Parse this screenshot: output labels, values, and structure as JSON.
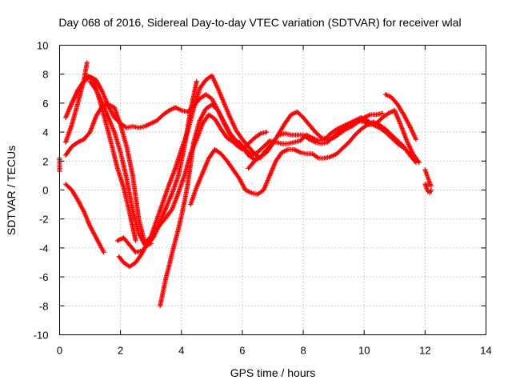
{
  "chart_data": {
    "type": "scatter",
    "title": "Day 068 of 2016, Sidereal Day-to-day VTEC variation (SDTVAR) for receiver wlal",
    "xlabel": "GPS time / hours",
    "ylabel": "SDTVAR / TECUs",
    "xlim": [
      0,
      14
    ],
    "ylim": [
      -10,
      10
    ],
    "xticks": [
      0,
      2,
      4,
      6,
      8,
      10,
      12,
      14
    ],
    "yticks": [
      -10,
      -8,
      -6,
      -4,
      -2,
      0,
      2,
      4,
      6,
      8,
      10
    ],
    "grid": true,
    "legend": "none",
    "marker": "+",
    "color": "#ff0000",
    "series": [
      {
        "x": [
          0.2,
          0.4,
          0.6,
          0.8,
          1.0,
          1.2,
          1.45
        ],
        "y": [
          0.4,
          0.0,
          -0.7,
          -1.5,
          -2.5,
          -3.3,
          -4.3
        ]
      },
      {
        "x": [
          0.2,
          0.4,
          0.6,
          0.8,
          1.0,
          1.2,
          1.4,
          1.6,
          1.8,
          2.0,
          2.2,
          2.4,
          2.6,
          2.8,
          3.0,
          3.2,
          3.4,
          3.6,
          3.8,
          4.0,
          4.2,
          4.4,
          4.6,
          4.8,
          5.0,
          5.2,
          5.4,
          5.6,
          5.8,
          6.0,
          6.2,
          6.4,
          6.6,
          6.8
        ],
        "y": [
          5.0,
          6.0,
          6.9,
          7.5,
          7.8,
          7.6,
          6.8,
          5.8,
          5.0,
          4.6,
          4.3,
          4.4,
          4.3,
          4.4,
          4.6,
          4.8,
          5.2,
          5.5,
          5.7,
          5.5,
          5.4,
          5.8,
          6.3,
          6.6,
          6.3,
          5.5,
          4.6,
          3.8,
          3.1,
          2.8,
          3.2,
          3.6,
          3.9,
          4.0
        ]
      },
      {
        "x": [
          0.3,
          0.5,
          0.7,
          0.9,
          1.1,
          1.3,
          1.5,
          1.7,
          1.9,
          2.1,
          2.3,
          2.5
        ],
        "y": [
          5.5,
          6.4,
          7.2,
          7.9,
          7.7,
          6.3,
          4.8,
          3.2,
          1.5,
          0.2,
          -1.6,
          -3.5
        ]
      },
      {
        "x": [
          0.2,
          0.4,
          0.6,
          0.8,
          0.9
        ],
        "y": [
          3.3,
          4.5,
          6.0,
          7.6,
          8.8
        ]
      },
      {
        "x": [
          0.2,
          0.4,
          0.6,
          0.8,
          1.0,
          1.2,
          1.4,
          1.6,
          1.8,
          2.0,
          2.2,
          2.4,
          2.6,
          2.8,
          3.0,
          3.2,
          3.4,
          3.6,
          3.8,
          4.0,
          4.2,
          4.4,
          4.6,
          4.8,
          5.0,
          5.2,
          5.4,
          5.6,
          5.8,
          6.0,
          6.2,
          6.4,
          6.6
        ],
        "y": [
          2.4,
          3.0,
          3.3,
          3.5,
          4.0,
          5.1,
          5.8,
          5.9,
          5.7,
          4.5,
          3.0,
          1.0,
          -2.0,
          -3.7,
          -3.2,
          -2.0,
          -0.8,
          0.4,
          1.5,
          2.8,
          4.0,
          5.6,
          7.0,
          7.6,
          7.9,
          7.0,
          6.0,
          5.0,
          4.1,
          3.5,
          3.0,
          2.5,
          2.2
        ]
      },
      {
        "x": [
          1.9,
          2.1,
          2.3,
          2.5,
          2.7,
          2.9,
          3.1,
          3.3,
          3.5,
          3.7,
          3.9,
          4.1,
          4.3,
          4.5
        ],
        "y": [
          -3.5,
          -3.3,
          -3.8,
          -4.3,
          -4.2,
          -3.8,
          -3.2,
          -2.2,
          -1.2,
          -0.2,
          1.0,
          3.0,
          5.5,
          7.5
        ]
      },
      {
        "x": [
          1.95,
          2.1,
          2.3,
          2.5,
          2.7,
          2.9,
          3.1,
          3.3,
          3.5,
          3.7,
          3.9,
          4.1,
          4.3,
          4.5,
          4.7,
          4.9,
          5.1,
          5.3,
          5.5,
          5.7,
          5.9,
          6.1,
          6.3,
          6.5,
          6.7,
          6.9,
          7.1,
          7.3,
          7.5,
          7.7,
          7.9,
          8.1,
          8.3,
          8.5,
          8.7,
          8.9,
          9.1,
          9.3,
          9.5,
          9.7,
          9.9,
          10.1,
          10.3,
          10.5,
          10.7,
          10.9,
          11.1,
          11.3,
          11.5,
          11.7
        ],
        "y": [
          -4.6,
          -5.0,
          -5.3,
          -5.0,
          -4.4,
          -3.6,
          -3.0,
          -2.4,
          -1.9,
          -1.3,
          -0.2,
          1.0,
          2.5,
          3.5,
          4.6,
          5.2,
          4.9,
          4.2,
          3.6,
          3.3,
          3.3,
          2.8,
          2.4,
          2.6,
          3.0,
          3.4,
          3.3,
          3.2,
          3.2,
          3.3,
          3.4,
          3.8,
          3.6,
          3.4,
          3.5,
          3.9,
          4.2,
          4.4,
          4.6,
          4.8,
          5.0,
          4.8,
          4.5,
          4.3,
          4.0,
          3.6,
          3.2,
          2.9,
          2.5,
          2.2
        ]
      },
      {
        "x": [
          3.3,
          3.4,
          3.5,
          3.6,
          3.7,
          3.8,
          3.9,
          4.0,
          4.1,
          4.2,
          4.3,
          4.4,
          4.6,
          4.8,
          5.0,
          5.2,
          5.4,
          5.6,
          5.8,
          6.0,
          6.2,
          6.4,
          6.6,
          6.8,
          7.0,
          7.2,
          7.4,
          7.6,
          7.8,
          8.0,
          8.2,
          8.4,
          8.6,
          8.8,
          9.0,
          9.2,
          9.4,
          9.6,
          9.8,
          10.0,
          10.2,
          10.4,
          10.6,
          10.8,
          11.0,
          11.2,
          11.4,
          11.6,
          11.8
        ],
        "y": [
          -8.0,
          -7.0,
          -6.0,
          -5.2,
          -4.3,
          -3.5,
          -2.7,
          -1.8,
          -0.8,
          0.3,
          1.8,
          3.3,
          4.8,
          5.6,
          5.9,
          5.5,
          4.7,
          3.9,
          3.4,
          3.0,
          2.4,
          2.1,
          2.3,
          2.8,
          3.3,
          3.8,
          3.9,
          3.8,
          3.8,
          3.8,
          3.5,
          3.3,
          3.2,
          3.3,
          3.7,
          4.1,
          4.3,
          4.5,
          4.8,
          4.7,
          4.5,
          4.6,
          5.0,
          5.3,
          5.5,
          4.5,
          3.4,
          2.5,
          1.9
        ]
      },
      {
        "x": [
          4.3,
          4.5,
          4.7,
          4.9,
          5.1,
          5.3,
          5.5,
          5.7,
          5.9,
          6.1,
          6.3,
          6.5,
          6.7,
          6.9,
          7.1,
          7.3,
          7.5,
          7.7,
          7.9,
          8.1,
          8.3,
          8.5,
          8.7,
          8.9,
          9.1,
          9.3,
          9.5,
          9.7,
          9.9,
          10.1,
          10.3,
          10.5,
          10.7,
          10.9,
          11.1,
          11.3,
          11.5,
          11.7
        ],
        "y": [
          -1.0,
          0.2,
          1.2,
          2.2,
          2.8,
          2.5,
          2.0,
          1.4,
          0.8,
          0.0,
          -0.2,
          -0.3,
          0.0,
          1.0,
          2.0,
          2.6,
          2.8,
          2.8,
          2.6,
          2.5,
          2.5,
          2.2,
          2.2,
          2.3,
          2.5,
          2.9,
          3.3,
          3.8,
          4.2,
          4.5,
          4.7,
          4.5,
          4.2,
          3.8,
          3.4,
          3.0,
          2.4,
          1.9
        ]
      },
      {
        "x": [
          6.2,
          6.4,
          6.6,
          6.8,
          7.0,
          7.2,
          7.4,
          7.6,
          7.8,
          8.0,
          8.2,
          8.4,
          8.6,
          8.8,
          9.0,
          9.2,
          9.4,
          9.6,
          9.8,
          10.0,
          10.2,
          10.4,
          10.6
        ],
        "y": [
          1.5,
          2.0,
          2.3,
          2.6,
          3.2,
          3.9,
          4.6,
          5.2,
          5.4,
          5.0,
          4.5,
          4.0,
          3.6,
          3.5,
          3.6,
          3.9,
          4.2,
          4.4,
          4.7,
          5.0,
          5.2,
          5.2,
          5.3
        ]
      },
      {
        "x": [
          10.7,
          10.9,
          11.1,
          11.3,
          11.5,
          11.7
        ],
        "y": [
          6.6,
          6.4,
          5.9,
          5.2,
          4.4,
          3.5
        ]
      },
      {
        "x": [
          1.0,
          1.2,
          1.4,
          1.6,
          1.8,
          2.0,
          2.2,
          2.4,
          2.6,
          2.8,
          3.0
        ],
        "y": [
          7.5,
          6.9,
          6.0,
          5.0,
          4.0,
          2.6,
          0.8,
          -1.4,
          -3.0,
          -3.8,
          -3.7
        ]
      },
      {
        "x": [
          12.0,
          12.05,
          12.1,
          12.15,
          12.2,
          12.0,
          12.05,
          12.1,
          12.15,
          12.2
        ],
        "y": [
          1.4,
          1.1,
          0.8,
          0.5,
          0.3,
          0.4,
          0.1,
          -0.1,
          -0.2,
          0.0
        ]
      },
      {
        "x": [
          0.0,
          0.0,
          0.0,
          0.0
        ],
        "y": [
          1.3,
          1.7,
          2.0,
          2.2
        ]
      }
    ]
  }
}
